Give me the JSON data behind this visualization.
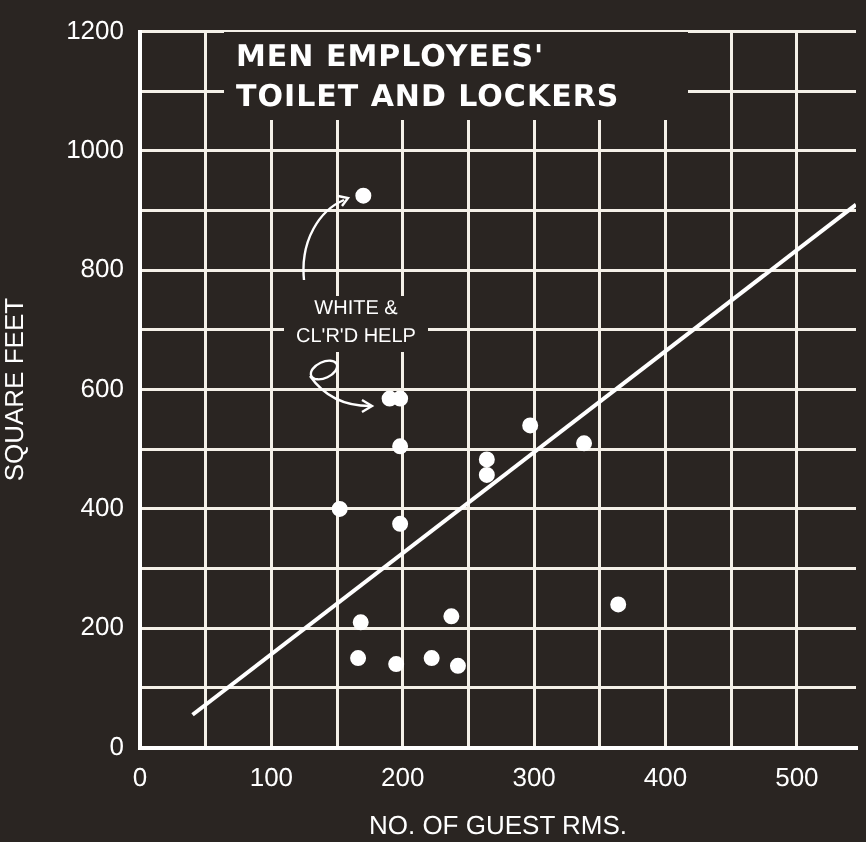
{
  "chart_data": {
    "type": "scatter",
    "title": "MEN EMPLOYEES' TOILET AND LOCKERS",
    "xlabel": "NO. OF GUEST RMS.",
    "ylabel": "SQUARE FEET",
    "xlim": [
      0,
      545
    ],
    "ylim": [
      0,
      1200
    ],
    "xticks": [
      0,
      {
        "value": 50,
        "label": null
      },
      100,
      {
        "value": 150,
        "label": null
      },
      200,
      {
        "value": 250,
        "label": null
      },
      300,
      {
        "value": 350,
        "label": null
      },
      400,
      {
        "value": 450,
        "label": null
      },
      500
    ],
    "yticks": [
      0,
      {
        "value": 100,
        "label": null
      },
      200,
      {
        "value": 300,
        "label": null
      },
      400,
      {
        "value": 500,
        "label": null
      },
      600,
      {
        "value": 700,
        "label": null
      },
      800,
      {
        "value": 900,
        "label": null
      },
      1000,
      {
        "value": 1100,
        "label": null
      },
      1200
    ],
    "grid": true,
    "marker": "circle",
    "legend": false,
    "annotations": [
      "WHITE & CL'R'D HELP"
    ],
    "series": [
      {
        "type": "scatter",
        "color": "#ffffff",
        "x": [
          170,
          190,
          198,
          297,
          338,
          198,
          264,
          264,
          152,
          198,
          168,
          237,
          364,
          166,
          195,
          222,
          242
        ],
        "values": [
          925,
          585,
          585,
          540,
          510,
          505,
          483,
          457,
          400,
          375,
          210,
          220,
          240,
          150,
          140,
          150,
          137
        ]
      },
      {
        "type": "line",
        "color": "#ffffff",
        "marker": "none",
        "x": [
          40,
          545
        ],
        "values": [
          55,
          910
        ]
      }
    ]
  }
}
